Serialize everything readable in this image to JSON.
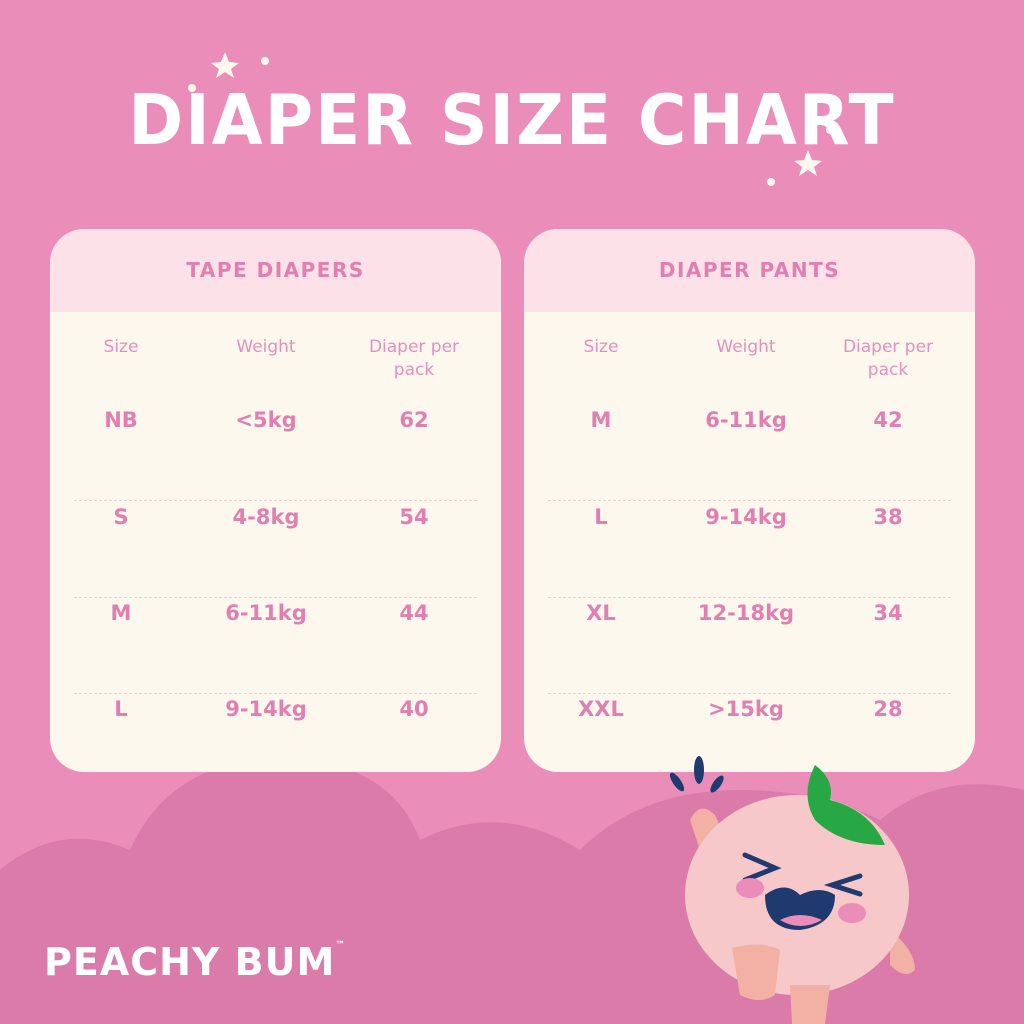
{
  "title": "DIAPER SIZE CHART",
  "columns": {
    "size": "Size",
    "weight": "Weight",
    "per_pack": "Diaper per pack"
  },
  "tape": {
    "heading": "TAPE DIAPERS",
    "rows": [
      {
        "size": "NB",
        "weight": "<5kg",
        "count": "62"
      },
      {
        "size": "S",
        "weight": "4-8kg",
        "count": "54"
      },
      {
        "size": "M",
        "weight": "6-11kg",
        "count": "44"
      },
      {
        "size": "L",
        "weight": "9-14kg",
        "count": "40"
      }
    ]
  },
  "pants": {
    "heading": "DIAPER PANTS",
    "rows": [
      {
        "size": "M",
        "weight": "6-11kg",
        "count": "42"
      },
      {
        "size": "L",
        "weight": "9-14kg",
        "count": "38"
      },
      {
        "size": "XL",
        "weight": "12-18kg",
        "count": "34"
      },
      {
        "size": "XXL",
        "weight": ">15kg",
        "count": "28"
      }
    ]
  },
  "logo": {
    "text": "PEACHY BUM",
    "tm": "™"
  },
  "colors": {
    "background": "#ea8db8",
    "hills": "#da7baa",
    "card_header": "#fde1e8",
    "card_body": "#fdf8ee",
    "text": "#e07fb0",
    "leaf": "#27a845",
    "face": "#f7c8c9"
  }
}
